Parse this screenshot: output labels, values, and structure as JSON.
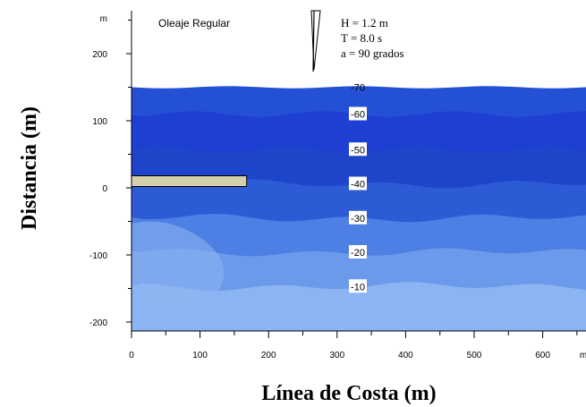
{
  "chart_data": {
    "type": "heatmap",
    "title": "Oleaje Regular",
    "xlabel": "Línea de Costa (m)",
    "ylabel": "Distancia (m)",
    "x_unit": "m",
    "y_unit": "m",
    "xlim": [
      0,
      660
    ],
    "ylim": [
      -210,
      260
    ],
    "x_ticks": [
      0,
      100,
      200,
      300,
      400,
      500,
      600
    ],
    "y_ticks": [
      -200,
      -100,
      0,
      100,
      200
    ],
    "wave_parameters": [
      "H = 1.2 m",
      "T = 8.0 s",
      "a = 90  grados"
    ],
    "contours": [
      {
        "label": "-70",
        "y": 150,
        "color": "#2450d6"
      },
      {
        "label": "-60",
        "y": 110,
        "color": "#1f3fd2"
      },
      {
        "label": "-50",
        "y": 57,
        "color": "#1e45c9"
      },
      {
        "label": "-40",
        "y": 6,
        "color": "#2d5bd6"
      },
      {
        "label": "-30",
        "y": -45,
        "color": "#4d7fe4"
      },
      {
        "label": "-20",
        "y": -96,
        "color": "#6c9aeb"
      },
      {
        "label": "-10",
        "y": -147,
        "color": "#8bb4f2"
      }
    ],
    "structure": {
      "x_start": 0,
      "x_end": 168,
      "y_bottom": 2,
      "y_top": 18,
      "color": "#d4d0ac"
    }
  }
}
